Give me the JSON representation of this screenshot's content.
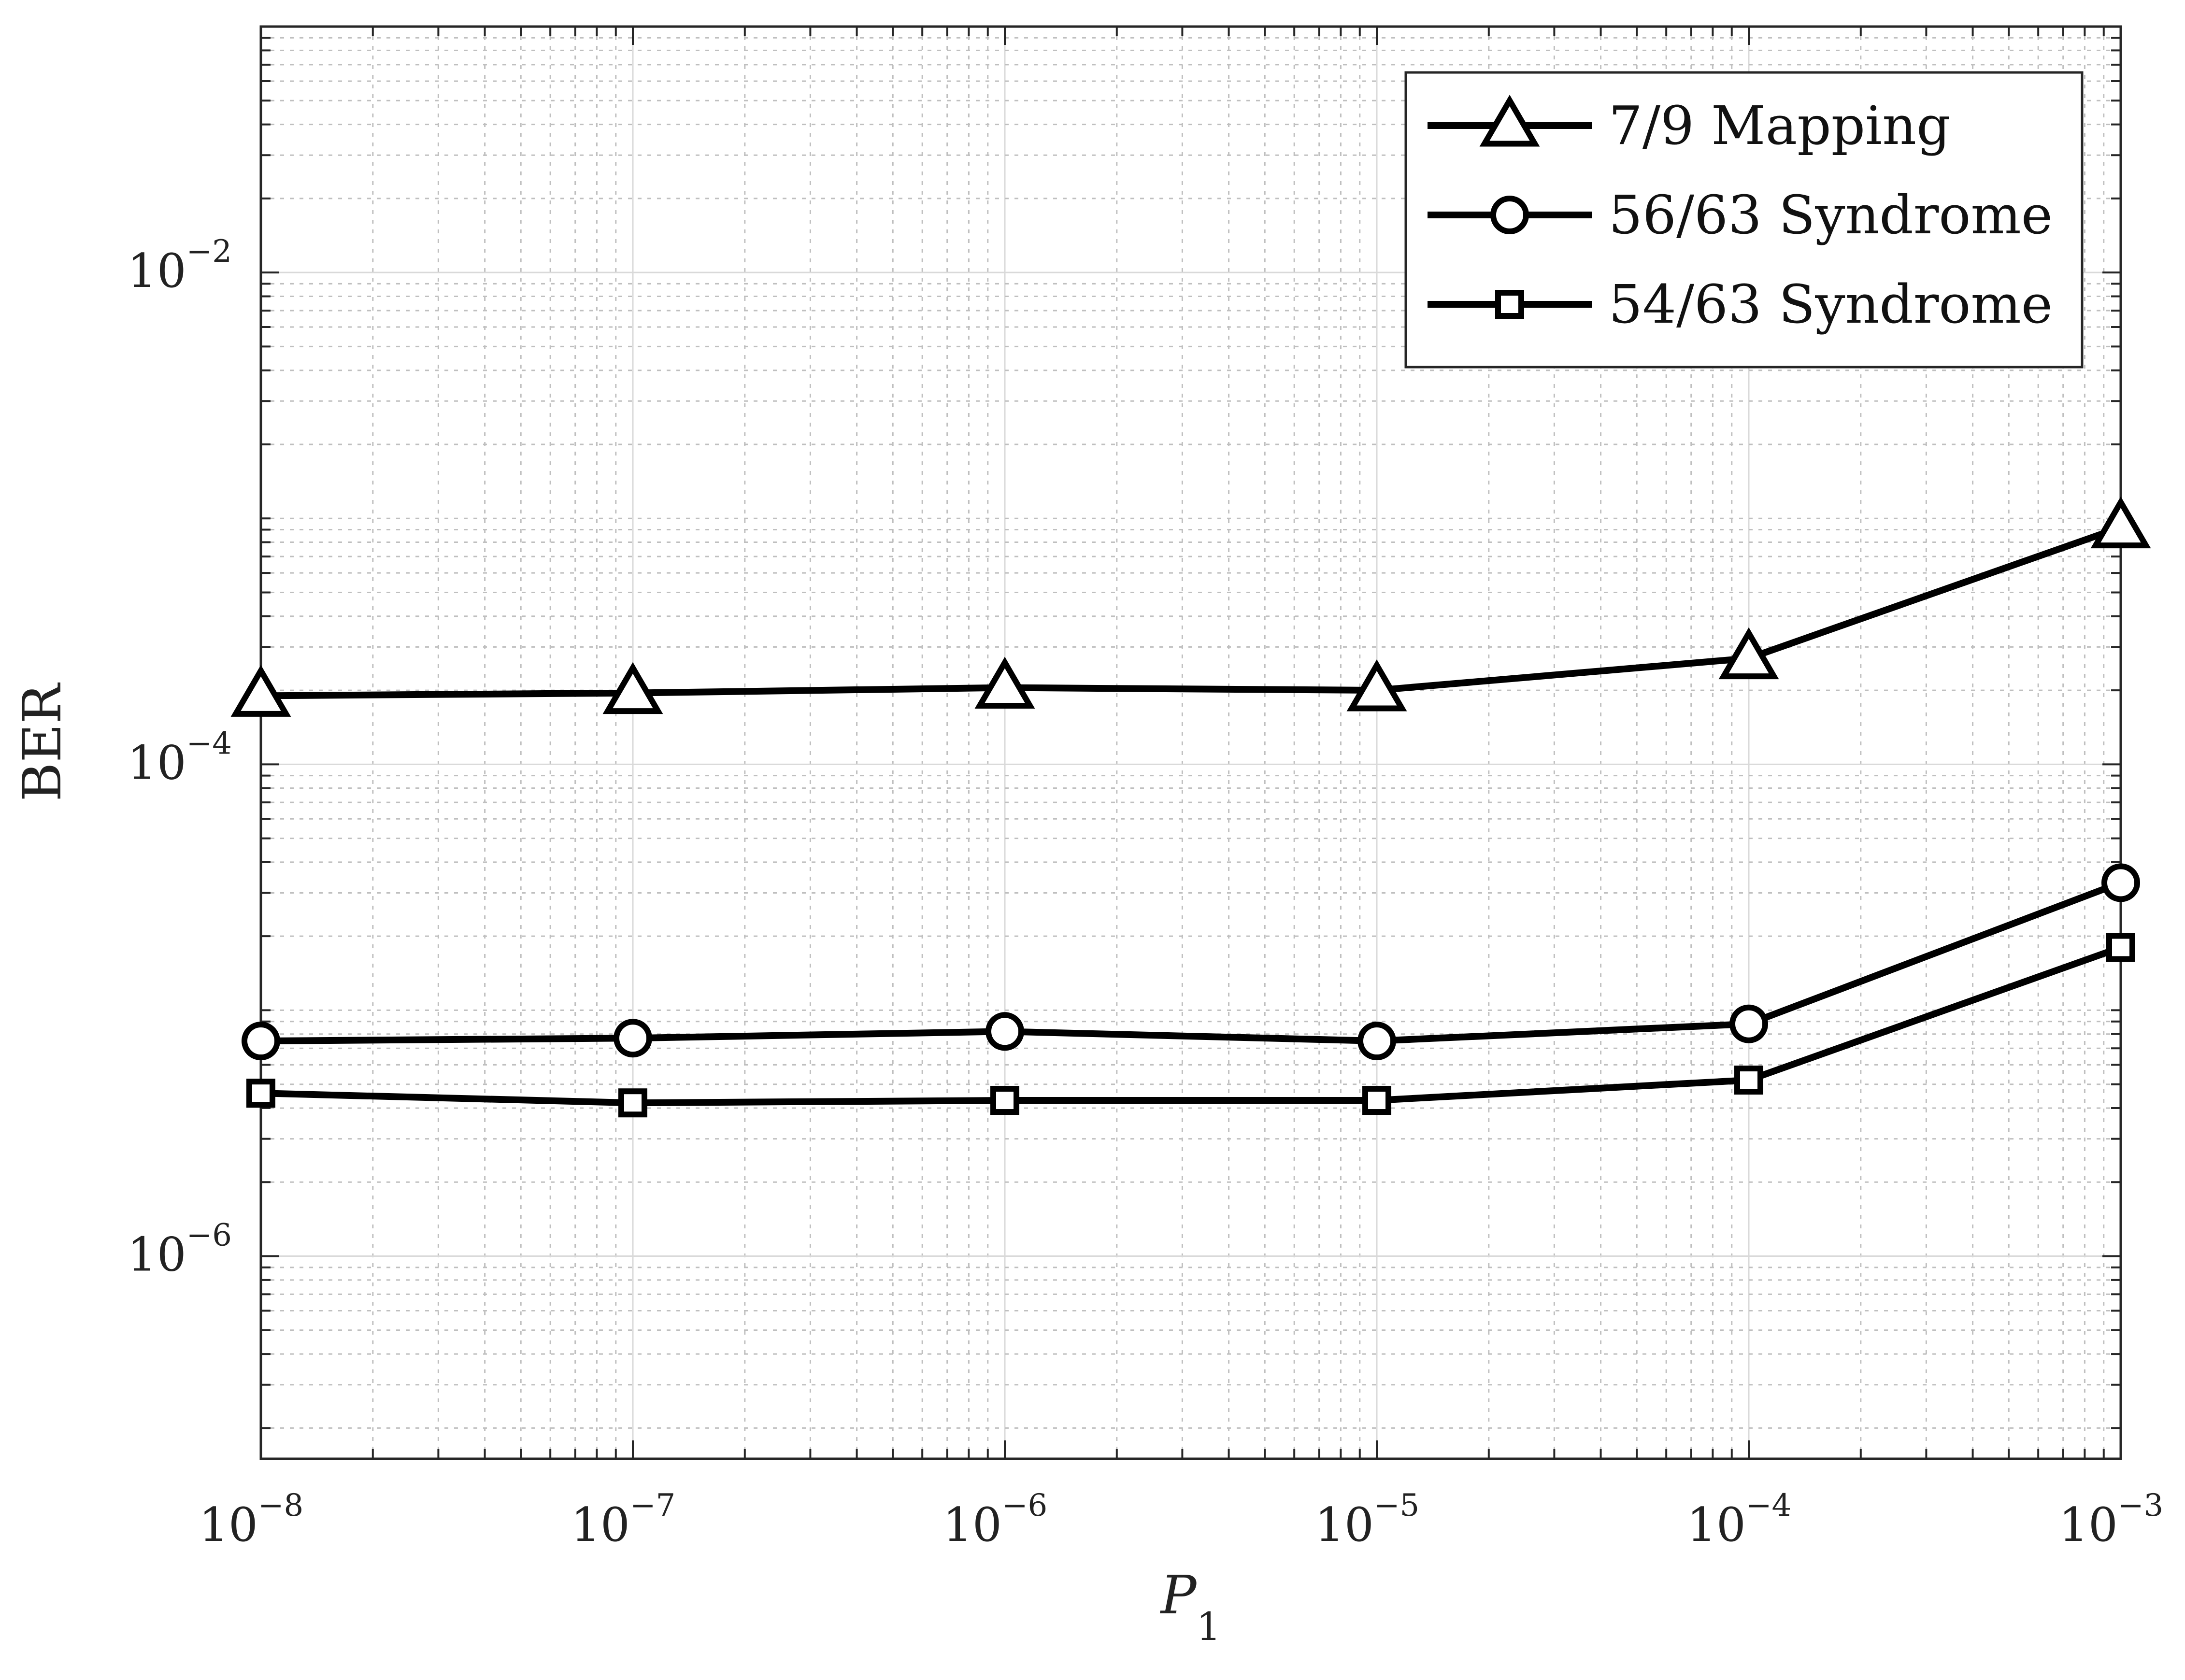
{
  "chart_data": {
    "type": "line",
    "xscale": "log",
    "yscale": "log",
    "xlim": [
      1e-08,
      0.001
    ],
    "ylim": [
      1.5e-07,
      0.1
    ],
    "xlabel": {
      "base": "P",
      "sub": "1"
    },
    "ylabel": "BER",
    "grid": true,
    "legend_position": "top-right",
    "x_ticks": [
      {
        "value": 1e-08,
        "base": "10",
        "exp": "−8"
      },
      {
        "value": 1e-07,
        "base": "10",
        "exp": "−7"
      },
      {
        "value": 1e-06,
        "base": "10",
        "exp": "−6"
      },
      {
        "value": 1e-05,
        "base": "10",
        "exp": "−5"
      },
      {
        "value": 0.0001,
        "base": "10",
        "exp": "−4"
      },
      {
        "value": 0.001,
        "base": "10",
        "exp": "−3"
      }
    ],
    "y_ticks": [
      {
        "value": 1e-06,
        "base": "10",
        "exp": "−6"
      },
      {
        "value": 0.0001,
        "base": "10",
        "exp": "−4"
      },
      {
        "value": 0.01,
        "base": "10",
        "exp": "−2"
      }
    ],
    "x": [
      1e-08,
      1e-07,
      1e-06,
      1e-05,
      0.0001,
      0.001
    ],
    "series": [
      {
        "name": "7/9 Mapping",
        "marker": "triangle",
        "values": [
          0.00019,
          0.000195,
          0.000205,
          0.0002,
          0.00027,
          0.00092
        ]
      },
      {
        "name": "56/63 Syndrome",
        "marker": "circle",
        "values": [
          7.5e-06,
          7.7e-06,
          8.2e-06,
          7.5e-06,
          8.8e-06,
          3.3e-05
        ]
      },
      {
        "name": "54/63 Syndrome",
        "marker": "square",
        "values": [
          4.6e-06,
          4.2e-06,
          4.3e-06,
          4.3e-06,
          5.2e-06,
          1.8e-05
        ]
      }
    ],
    "colors": {
      "line": "#000000",
      "grid_major": "#d9d9d9",
      "grid_minor": "#bfbfbf",
      "axis": "#262626"
    }
  }
}
